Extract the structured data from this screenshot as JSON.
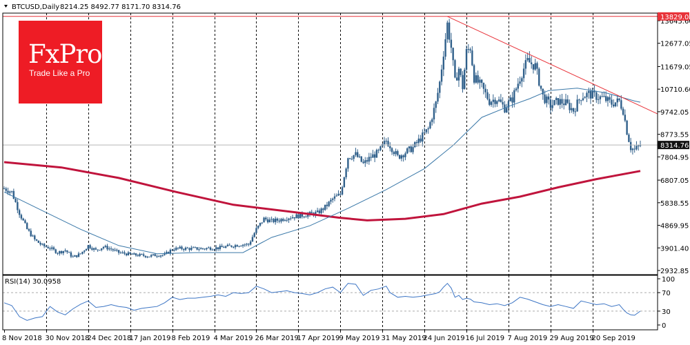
{
  "header": {
    "symbol": "BTCUSD,Daily",
    "ohlc": "8214.25 8492.77 8171.70 8314.76",
    "rsi_label": "RSI(14) 30.0958"
  },
  "logo": {
    "name": "FxPro",
    "tagline": "Trade Like a Pro"
  },
  "colors": {
    "candle": "#2f5f8a",
    "ma_fast": "#3a78a8",
    "ma_slow": "#c0143c",
    "resistance": "#e8333a",
    "rsi_line": "#3b74c4",
    "price_tag": "#111111",
    "resistance_tag": "#e8333a"
  },
  "chart_data": {
    "type": "candlestick",
    "price_axis": {
      "ticks": [
        13645.6,
        12677.05,
        11679.05,
        10710.6,
        9742.05,
        8773.55,
        7804.95,
        6807.05,
        5838.55,
        4869.95,
        3901.4,
        2932.85
      ],
      "labels": [
        "13645.60",
        "12677.05",
        "11679.05",
        "10710.60",
        "9742.05",
        "8773.55",
        "7804.95",
        "6807.05",
        "5838.55",
        "4869.95",
        "3901.40",
        "2932.85"
      ]
    },
    "rsi_axis": {
      "ticks": [
        100,
        70,
        30,
        0
      ],
      "labels": [
        "100",
        "70",
        "30",
        "0"
      ]
    },
    "x_labels": [
      "8 Nov 2018",
      "30 Nov 2018",
      "24 Dec 2018",
      "17 Jan 2019",
      "8 Feb 2019",
      "4 Mar 2019",
      "26 Mar 2019",
      "17 Apr 2019",
      "9 May 2019",
      "31 May 2019",
      "24 Jun 2019",
      "16 Jul 2019",
      "7 Aug 2019",
      "29 Aug 2019",
      "20 Sep 2019"
    ],
    "current_price": {
      "value": 8314.76,
      "label": "8314.76"
    },
    "resistance": {
      "value": 13829.0,
      "label": "13829.00"
    },
    "close_path": [
      [
        0,
        6450
      ],
      [
        4,
        6300
      ],
      [
        8,
        5400
      ],
      [
        12,
        4700
      ],
      [
        16,
        4250
      ],
      [
        20,
        4000
      ],
      [
        24,
        3900
      ],
      [
        28,
        3700
      ],
      [
        32,
        3800
      ],
      [
        36,
        3500
      ],
      [
        40,
        3650
      ],
      [
        44,
        4000
      ],
      [
        48,
        3800
      ],
      [
        52,
        3950
      ],
      [
        56,
        3850
      ],
      [
        60,
        3700
      ],
      [
        64,
        3650
      ],
      [
        68,
        3600
      ],
      [
        72,
        3580
      ],
      [
        76,
        3550
      ],
      [
        80,
        3600
      ],
      [
        84,
        3600
      ],
      [
        88,
        3850
      ],
      [
        92,
        3880
      ],
      [
        96,
        3870
      ],
      [
        100,
        3870
      ],
      [
        104,
        3870
      ],
      [
        108,
        3900
      ],
      [
        112,
        3900
      ],
      [
        116,
        3950
      ],
      [
        120,
        4000
      ],
      [
        124,
        4050
      ],
      [
        128,
        4050
      ],
      [
        132,
        4700
      ],
      [
        136,
        5150
      ],
      [
        140,
        5050
      ],
      [
        144,
        5100
      ],
      [
        148,
        5200
      ],
      [
        152,
        5250
      ],
      [
        156,
        5300
      ],
      [
        160,
        5350
      ],
      [
        164,
        5400
      ],
      [
        168,
        5650
      ],
      [
        172,
        6000
      ],
      [
        176,
        6200
      ],
      [
        180,
        7800
      ],
      [
        184,
        7900
      ],
      [
        188,
        7500
      ],
      [
        192,
        7800
      ],
      [
        196,
        8000
      ],
      [
        200,
        8500
      ],
      [
        202,
        8300
      ],
      [
        206,
        7800
      ],
      [
        210,
        8000
      ],
      [
        214,
        8200
      ],
      [
        218,
        8600
      ],
      [
        222,
        9000
      ],
      [
        226,
        10100
      ],
      [
        228,
        11000
      ],
      [
        230,
        12300
      ],
      [
        232,
        13500
      ],
      [
        234,
        12500
      ],
      [
        236,
        11000
      ],
      [
        238,
        11600
      ],
      [
        240,
        10800
      ],
      [
        242,
        12300
      ],
      [
        244,
        12500
      ],
      [
        246,
        11200
      ],
      [
        250,
        10800
      ],
      [
        254,
        10200
      ],
      [
        258,
        10300
      ],
      [
        262,
        9900
      ],
      [
        266,
        10300
      ],
      [
        270,
        11200
      ],
      [
        272,
        11600
      ],
      [
        274,
        11900
      ],
      [
        278,
        11700
      ],
      [
        282,
        10400
      ],
      [
        286,
        10000
      ],
      [
        290,
        10200
      ],
      [
        294,
        10100
      ],
      [
        298,
        9800
      ],
      [
        302,
        10400
      ],
      [
        306,
        10500
      ],
      [
        310,
        10400
      ],
      [
        314,
        10300
      ],
      [
        318,
        10100
      ],
      [
        322,
        10200
      ],
      [
        324,
        9800
      ],
      [
        326,
        8900
      ],
      [
        328,
        8200
      ],
      [
        330,
        8100
      ],
      [
        333,
        8314.76
      ]
    ],
    "ma_fast": [
      [
        0,
        6300
      ],
      [
        20,
        5500
      ],
      [
        40,
        4700
      ],
      [
        60,
        4000
      ],
      [
        80,
        3650
      ],
      [
        100,
        3700
      ],
      [
        125,
        3700
      ],
      [
        140,
        4350
      ],
      [
        160,
        4850
      ],
      [
        180,
        5600
      ],
      [
        200,
        6400
      ],
      [
        220,
        7300
      ],
      [
        235,
        8300
      ],
      [
        250,
        9500
      ],
      [
        265,
        10000
      ],
      [
        275,
        10300
      ],
      [
        285,
        10650
      ],
      [
        300,
        10750
      ],
      [
        315,
        10550
      ],
      [
        330,
        10200
      ],
      [
        333,
        10150
      ]
    ],
    "ma_slow": [
      [
        0,
        7580
      ],
      [
        30,
        7350
      ],
      [
        60,
        6900
      ],
      [
        90,
        6300
      ],
      [
        120,
        5750
      ],
      [
        150,
        5450
      ],
      [
        175,
        5200
      ],
      [
        190,
        5080
      ],
      [
        210,
        5150
      ],
      [
        230,
        5350
      ],
      [
        250,
        5800
      ],
      [
        270,
        6100
      ],
      [
        290,
        6500
      ],
      [
        310,
        6850
      ],
      [
        333,
        7200
      ]
    ],
    "rsi": [
      [
        0,
        48
      ],
      [
        4,
        42
      ],
      [
        8,
        18
      ],
      [
        12,
        10
      ],
      [
        16,
        15
      ],
      [
        20,
        18
      ],
      [
        24,
        40
      ],
      [
        28,
        28
      ],
      [
        32,
        22
      ],
      [
        36,
        35
      ],
      [
        40,
        45
      ],
      [
        44,
        52
      ],
      [
        48,
        38
      ],
      [
        52,
        40
      ],
      [
        56,
        44
      ],
      [
        60,
        40
      ],
      [
        64,
        38
      ],
      [
        68,
        32
      ],
      [
        72,
        36
      ],
      [
        76,
        38
      ],
      [
        80,
        40
      ],
      [
        84,
        48
      ],
      [
        88,
        60
      ],
      [
        92,
        55
      ],
      [
        96,
        58
      ],
      [
        100,
        58
      ],
      [
        104,
        60
      ],
      [
        108,
        62
      ],
      [
        112,
        65
      ],
      [
        116,
        62
      ],
      [
        120,
        70
      ],
      [
        124,
        68
      ],
      [
        128,
        70
      ],
      [
        132,
        84
      ],
      [
        136,
        78
      ],
      [
        140,
        70
      ],
      [
        144,
        72
      ],
      [
        148,
        74
      ],
      [
        152,
        70
      ],
      [
        156,
        68
      ],
      [
        160,
        65
      ],
      [
        164,
        70
      ],
      [
        168,
        78
      ],
      [
        172,
        82
      ],
      [
        176,
        70
      ],
      [
        180,
        90
      ],
      [
        184,
        88
      ],
      [
        188,
        64
      ],
      [
        192,
        75
      ],
      [
        196,
        78
      ],
      [
        200,
        84
      ],
      [
        202,
        70
      ],
      [
        206,
        60
      ],
      [
        210,
        62
      ],
      [
        214,
        60
      ],
      [
        218,
        62
      ],
      [
        222,
        65
      ],
      [
        226,
        68
      ],
      [
        228,
        72
      ],
      [
        230,
        82
      ],
      [
        232,
        90
      ],
      [
        234,
        80
      ],
      [
        236,
        60
      ],
      [
        238,
        64
      ],
      [
        240,
        55
      ],
      [
        242,
        58
      ],
      [
        244,
        56
      ],
      [
        246,
        50
      ],
      [
        250,
        48
      ],
      [
        254,
        44
      ],
      [
        258,
        46
      ],
      [
        262,
        42
      ],
      [
        266,
        48
      ],
      [
        270,
        60
      ],
      [
        272,
        58
      ],
      [
        274,
        56
      ],
      [
        278,
        50
      ],
      [
        282,
        44
      ],
      [
        286,
        40
      ],
      [
        290,
        44
      ],
      [
        294,
        40
      ],
      [
        298,
        36
      ],
      [
        302,
        52
      ],
      [
        306,
        48
      ],
      [
        310,
        44
      ],
      [
        314,
        46
      ],
      [
        318,
        40
      ],
      [
        322,
        44
      ],
      [
        324,
        34
      ],
      [
        326,
        26
      ],
      [
        328,
        22
      ],
      [
        330,
        21
      ],
      [
        333,
        30
      ]
    ]
  }
}
